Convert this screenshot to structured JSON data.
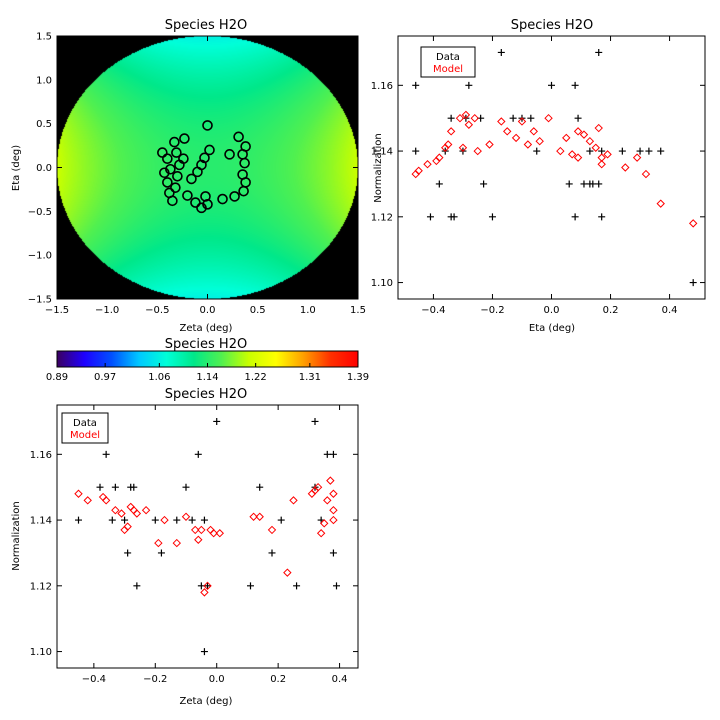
{
  "chart_data": [
    {
      "id": "map",
      "type": "heatmap",
      "title": "Species H2O",
      "xlabel": "Zeta (deg)",
      "ylabel": "Eta (deg)",
      "xlim": [
        -1.5,
        1.5
      ],
      "ylim": [
        -1.5,
        1.5
      ],
      "xticks": [
        -1.5,
        -1.0,
        -0.5,
        0.0,
        0.5,
        1.0,
        1.5
      ],
      "yticks": [
        -1.5,
        -1.0,
        -0.5,
        0.0,
        0.5,
        1.0,
        1.5
      ],
      "xtick_labels": [
        "−1.5",
        "−1.0",
        "−0.5",
        "0.0",
        "0.5",
        "1.0",
        "1.5"
      ],
      "ytick_labels": [
        "−1.5",
        "−1.0",
        "−0.5",
        "0.0",
        "0.5",
        "1.0",
        "1.5"
      ],
      "field_radius": 1.5,
      "background_color": "#000000",
      "marker_color": "#000000",
      "positions": [
        {
          "zeta": -0.45,
          "eta": 0.17
        },
        {
          "zeta": -0.4,
          "eta": 0.1
        },
        {
          "zeta": -0.33,
          "eta": 0.29
        },
        {
          "zeta": -0.23,
          "eta": 0.33
        },
        {
          "zeta": -0.31,
          "eta": 0.17
        },
        {
          "zeta": -0.24,
          "eta": 0.1
        },
        {
          "zeta": -0.28,
          "eta": 0.03
        },
        {
          "zeta": -0.37,
          "eta": -0.02
        },
        {
          "zeta": -0.43,
          "eta": -0.06
        },
        {
          "zeta": -0.3,
          "eta": -0.1
        },
        {
          "zeta": -0.4,
          "eta": -0.17
        },
        {
          "zeta": -0.32,
          "eta": -0.23
        },
        {
          "zeta": -0.38,
          "eta": -0.29
        },
        {
          "zeta": -0.35,
          "eta": -0.38
        },
        {
          "zeta": -0.2,
          "eta": -0.32
        },
        {
          "zeta": -0.12,
          "eta": -0.4
        },
        {
          "zeta": -0.06,
          "eta": -0.46
        },
        {
          "zeta": 0.0,
          "eta": -0.42
        },
        {
          "zeta": -0.02,
          "eta": -0.33
        },
        {
          "zeta": 0.15,
          "eta": -0.36
        },
        {
          "zeta": 0.27,
          "eta": -0.33
        },
        {
          "zeta": 0.36,
          "eta": -0.27
        },
        {
          "zeta": 0.38,
          "eta": -0.17
        },
        {
          "zeta": 0.35,
          "eta": -0.08
        },
        {
          "zeta": 0.37,
          "eta": 0.05
        },
        {
          "zeta": 0.35,
          "eta": 0.15
        },
        {
          "zeta": 0.38,
          "eta": 0.24
        },
        {
          "zeta": 0.31,
          "eta": 0.35
        },
        {
          "zeta": 0.22,
          "eta": 0.15
        },
        {
          "zeta": 0.0,
          "eta": 0.48
        },
        {
          "zeta": 0.02,
          "eta": 0.2
        },
        {
          "zeta": -0.03,
          "eta": 0.11
        },
        {
          "zeta": -0.06,
          "eta": 0.03
        },
        {
          "zeta": -0.1,
          "eta": -0.05
        },
        {
          "zeta": -0.16,
          "eta": -0.13
        }
      ]
    },
    {
      "id": "colorbar",
      "type": "colorbar",
      "title": "Species H2O",
      "range": [
        0.89,
        1.39
      ],
      "ticks": [
        0.89,
        0.97,
        1.06,
        1.14,
        1.22,
        1.31,
        1.39
      ],
      "tick_labels": [
        "0.89",
        "0.97",
        "1.06",
        "1.14",
        "1.22",
        "1.31",
        "1.39"
      ],
      "colormap_stops": [
        "#3b0060",
        "#1e00ff",
        "#0050ff",
        "#00c8ff",
        "#00ffd8",
        "#00e88a",
        "#50f050",
        "#c8ff00",
        "#ffff00",
        "#ffa000",
        "#ff3000",
        "#ff0000"
      ]
    },
    {
      "id": "eta",
      "type": "scatter",
      "title": "Species H2O",
      "xlabel": "Eta (deg)",
      "ylabel": "Normalization",
      "xlim": [
        -0.52,
        0.52
      ],
      "ylim": [
        1.095,
        1.175
      ],
      "xticks": [
        -0.4,
        -0.2,
        0.0,
        0.2,
        0.4
      ],
      "yticks": [
        1.1,
        1.12,
        1.14,
        1.16
      ],
      "xtick_labels": [
        "−0.4",
        "−0.2",
        "0.0",
        "0.2",
        "0.4"
      ],
      "ytick_labels": [
        "1.10",
        "1.12",
        "1.14",
        "1.16"
      ],
      "legend": {
        "position": "top-left",
        "entries": [
          {
            "label": "Data",
            "color": "#000000"
          },
          {
            "label": "Model",
            "color": "#ff0000"
          }
        ]
      },
      "series": [
        {
          "name": "Data",
          "marker": "plus",
          "color": "#000000",
          "points": [
            [
              -0.46,
              1.16
            ],
            [
              -0.46,
              1.14
            ],
            [
              -0.41,
              1.12
            ],
            [
              -0.38,
              1.13
            ],
            [
              -0.36,
              1.14
            ],
            [
              -0.34,
              1.15
            ],
            [
              -0.34,
              1.12
            ],
            [
              -0.33,
              1.12
            ],
            [
              -0.3,
              1.14
            ],
            [
              -0.29,
              1.15
            ],
            [
              -0.28,
              1.16
            ],
            [
              -0.24,
              1.15
            ],
            [
              -0.23,
              1.13
            ],
            [
              -0.2,
              1.12
            ],
            [
              -0.17,
              1.17
            ],
            [
              -0.13,
              1.15
            ],
            [
              -0.1,
              1.15
            ],
            [
              -0.07,
              1.15
            ],
            [
              -0.05,
              1.14
            ],
            [
              0.0,
              1.16
            ],
            [
              0.06,
              1.13
            ],
            [
              0.08,
              1.16
            ],
            [
              0.08,
              1.12
            ],
            [
              0.09,
              1.15
            ],
            [
              0.11,
              1.13
            ],
            [
              0.13,
              1.14
            ],
            [
              0.13,
              1.13
            ],
            [
              0.14,
              1.13
            ],
            [
              0.16,
              1.17
            ],
            [
              0.16,
              1.13
            ],
            [
              0.17,
              1.14
            ],
            [
              0.17,
              1.12
            ],
            [
              0.24,
              1.14
            ],
            [
              0.3,
              1.14
            ],
            [
              0.33,
              1.14
            ],
            [
              0.37,
              1.14
            ],
            [
              0.48,
              1.1
            ]
          ]
        },
        {
          "name": "Model",
          "marker": "diamond",
          "color": "#ff0000",
          "points": [
            [
              -0.46,
              1.133
            ],
            [
              -0.45,
              1.134
            ],
            [
              -0.42,
              1.136
            ],
            [
              -0.39,
              1.137
            ],
            [
              -0.38,
              1.138
            ],
            [
              -0.36,
              1.141
            ],
            [
              -0.35,
              1.142
            ],
            [
              -0.34,
              1.146
            ],
            [
              -0.31,
              1.15
            ],
            [
              -0.3,
              1.141
            ],
            [
              -0.29,
              1.151
            ],
            [
              -0.28,
              1.148
            ],
            [
              -0.26,
              1.15
            ],
            [
              -0.25,
              1.14
            ],
            [
              -0.21,
              1.142
            ],
            [
              -0.17,
              1.149
            ],
            [
              -0.15,
              1.146
            ],
            [
              -0.12,
              1.144
            ],
            [
              -0.1,
              1.149
            ],
            [
              -0.08,
              1.142
            ],
            [
              -0.06,
              1.146
            ],
            [
              -0.04,
              1.143
            ],
            [
              -0.01,
              1.15
            ],
            [
              0.03,
              1.14
            ],
            [
              0.05,
              1.144
            ],
            [
              0.07,
              1.139
            ],
            [
              0.09,
              1.138
            ],
            [
              0.09,
              1.146
            ],
            [
              0.11,
              1.145
            ],
            [
              0.13,
              1.143
            ],
            [
              0.15,
              1.141
            ],
            [
              0.16,
              1.147
            ],
            [
              0.17,
              1.136
            ],
            [
              0.17,
              1.138
            ],
            [
              0.19,
              1.139
            ],
            [
              0.25,
              1.135
            ],
            [
              0.29,
              1.138
            ],
            [
              0.32,
              1.133
            ],
            [
              0.37,
              1.124
            ],
            [
              0.48,
              1.118
            ]
          ]
        }
      ]
    },
    {
      "id": "zeta",
      "type": "scatter",
      "title": "Species H2O",
      "xlabel": "Zeta (deg)",
      "ylabel": "Normalization",
      "xlim": [
        -0.52,
        0.46
      ],
      "ylim": [
        1.095,
        1.175
      ],
      "xticks": [
        -0.4,
        -0.2,
        0.0,
        0.2,
        0.4
      ],
      "yticks": [
        1.1,
        1.12,
        1.14,
        1.16
      ],
      "xtick_labels": [
        "−0.4",
        "−0.2",
        "0.0",
        "0.2",
        "0.4"
      ],
      "ytick_labels": [
        "1.10",
        "1.12",
        "1.14",
        "1.16"
      ],
      "legend": {
        "position": "top-left",
        "entries": [
          {
            "label": "Data",
            "color": "#000000"
          },
          {
            "label": "Model",
            "color": "#ff0000"
          }
        ]
      },
      "series": [
        {
          "name": "Data",
          "marker": "plus",
          "color": "#000000",
          "points": [
            [
              -0.45,
              1.14
            ],
            [
              -0.38,
              1.15
            ],
            [
              -0.36,
              1.16
            ],
            [
              -0.34,
              1.14
            ],
            [
              -0.33,
              1.15
            ],
            [
              -0.3,
              1.14
            ],
            [
              -0.29,
              1.13
            ],
            [
              -0.28,
              1.15
            ],
            [
              -0.27,
              1.15
            ],
            [
              -0.26,
              1.12
            ],
            [
              -0.2,
              1.14
            ],
            [
              -0.18,
              1.13
            ],
            [
              -0.13,
              1.14
            ],
            [
              -0.1,
              1.15
            ],
            [
              -0.08,
              1.14
            ],
            [
              -0.06,
              1.16
            ],
            [
              -0.05,
              1.12
            ],
            [
              -0.04,
              1.14
            ],
            [
              -0.03,
              1.12
            ],
            [
              -0.04,
              1.1
            ],
            [
              0.0,
              1.17
            ],
            [
              0.11,
              1.12
            ],
            [
              0.14,
              1.15
            ],
            [
              0.18,
              1.13
            ],
            [
              0.21,
              1.14
            ],
            [
              0.26,
              1.12
            ],
            [
              0.32,
              1.17
            ],
            [
              0.32,
              1.15
            ],
            [
              0.34,
              1.14
            ],
            [
              0.36,
              1.16
            ],
            [
              0.38,
              1.16
            ],
            [
              0.38,
              1.13
            ],
            [
              0.39,
              1.12
            ]
          ]
        },
        {
          "name": "Model",
          "marker": "diamond",
          "color": "#ff0000",
          "points": [
            [
              -0.45,
              1.148
            ],
            [
              -0.42,
              1.146
            ],
            [
              -0.37,
              1.147
            ],
            [
              -0.36,
              1.146
            ],
            [
              -0.33,
              1.143
            ],
            [
              -0.31,
              1.142
            ],
            [
              -0.3,
              1.137
            ],
            [
              -0.29,
              1.138
            ],
            [
              -0.28,
              1.144
            ],
            [
              -0.27,
              1.143
            ],
            [
              -0.26,
              1.142
            ],
            [
              -0.23,
              1.143
            ],
            [
              -0.19,
              1.133
            ],
            [
              -0.17,
              1.14
            ],
            [
              -0.13,
              1.133
            ],
            [
              -0.1,
              1.141
            ],
            [
              -0.07,
              1.137
            ],
            [
              -0.06,
              1.134
            ],
            [
              -0.05,
              1.137
            ],
            [
              -0.04,
              1.118
            ],
            [
              -0.03,
              1.12
            ],
            [
              -0.02,
              1.137
            ],
            [
              -0.01,
              1.136
            ],
            [
              0.01,
              1.136
            ],
            [
              0.12,
              1.141
            ],
            [
              0.14,
              1.141
            ],
            [
              0.18,
              1.137
            ],
            [
              0.23,
              1.124
            ],
            [
              0.25,
              1.146
            ],
            [
              0.31,
              1.148
            ],
            [
              0.32,
              1.149
            ],
            [
              0.33,
              1.15
            ],
            [
              0.34,
              1.136
            ],
            [
              0.35,
              1.139
            ],
            [
              0.36,
              1.146
            ],
            [
              0.37,
              1.152
            ],
            [
              0.38,
              1.148
            ],
            [
              0.38,
              1.14
            ],
            [
              0.38,
              1.143
            ]
          ]
        }
      ]
    }
  ]
}
